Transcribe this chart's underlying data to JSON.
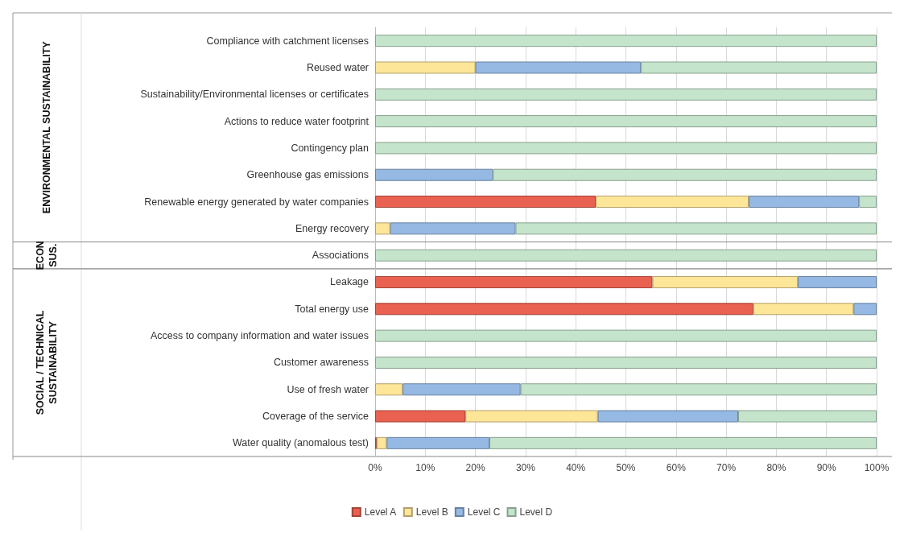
{
  "chart_data": {
    "type": "bar",
    "orientation": "horizontal",
    "stacked": true,
    "categories": [
      "Compliance with catchment licenses",
      "Reused water",
      "Sustainability/Environmental licenses or certificates",
      "Actions to reduce water footprint",
      "Contingency plan",
      "Greenhouse gas emissions",
      "Renewable energy generated by water companies",
      "Energy recovery",
      "Associations",
      "Leakage",
      "Total energy use",
      "Access to company information and water issues",
      "Customer awareness",
      "Use of fresh water",
      "Coverage of the service",
      "Water quality (anomalous test)"
    ],
    "series": [
      {
        "name": "Level A",
        "color": "#e96150",
        "values": [
          null,
          null,
          null,
          null,
          null,
          null,
          44,
          null,
          null,
          55.3,
          75.4,
          null,
          null,
          null,
          18,
          0.3
        ]
      },
      {
        "name": "Level B",
        "color": "#fee699",
        "values": [
          null,
          20,
          null,
          null,
          null,
          null,
          30.5,
          3,
          null,
          29,
          20,
          null,
          null,
          5.5,
          26.4,
          2
        ]
      },
      {
        "name": "Level C",
        "color": "#95b9e3",
        "values": [
          null,
          33,
          null,
          null,
          null,
          23.5,
          22,
          25,
          null,
          15.7,
          4.6,
          null,
          null,
          23.5,
          28,
          20.5
        ]
      },
      {
        "name": "Level D",
        "color": "#c4e4cb",
        "values": [
          100,
          47,
          100,
          100,
          100,
          76.5,
          3.5,
          72,
          100,
          null,
          null,
          100,
          100,
          71,
          27.6,
          77.2
        ]
      }
    ],
    "xlim": [
      0,
      100
    ],
    "xticks": [
      {
        "value": 0,
        "label": "0%"
      },
      {
        "value": 10,
        "label": "10%"
      },
      {
        "value": 20,
        "label": "20%"
      },
      {
        "value": 30,
        "label": "30%"
      },
      {
        "value": 40,
        "label": "40%"
      },
      {
        "value": 50,
        "label": "50%"
      },
      {
        "value": 60,
        "label": "60%"
      },
      {
        "value": 70,
        "label": "70%"
      },
      {
        "value": 80,
        "label": "80%"
      },
      {
        "value": 90,
        "label": "90%"
      },
      {
        "value": 100,
        "label": "100%"
      }
    ],
    "grid": "x",
    "legend": "bottom",
    "annotations": [
      "ENVIRONMENTAL SUSTAINABILITY",
      "ECON SUS.",
      "SOCIAL / TECHNICAL SUSTAINABILITY"
    ]
  }
}
